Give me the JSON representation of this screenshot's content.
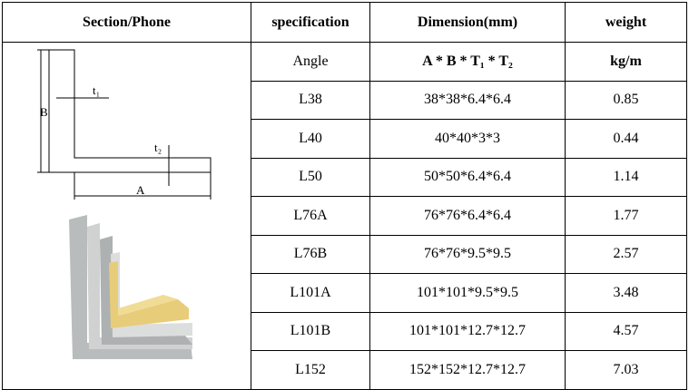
{
  "header": {
    "columns": [
      "Section/Phone",
      "specification",
      "Dimension(mm)",
      "weight"
    ]
  },
  "diagram": {
    "labels": {
      "b": "B",
      "t1": "t₁",
      "t2": "t₂",
      "a": "A"
    }
  },
  "table": {
    "rows": [
      [
        "Angle",
        "A * B * T₁ * T₂",
        "kg/m"
      ],
      [
        "L38",
        "38*38*6.4*6.4",
        "0.85"
      ],
      [
        "L40",
        "40*40*3*3",
        "0.44"
      ],
      [
        "L50",
        "50*50*6.4*6.4",
        "1.14"
      ],
      [
        "L76A",
        "76*76*6.4*6.4",
        "1.77"
      ],
      [
        "L76B",
        "76*76*9.5*9.5",
        "2.57"
      ],
      [
        "L101A",
        "101*101*9.5*9.5",
        "3.48"
      ],
      [
        "L101B",
        "101*101*12.7*12.7",
        "4.57"
      ],
      [
        "L152",
        "152*152*12.7*12.7",
        "7.03"
      ]
    ]
  }
}
